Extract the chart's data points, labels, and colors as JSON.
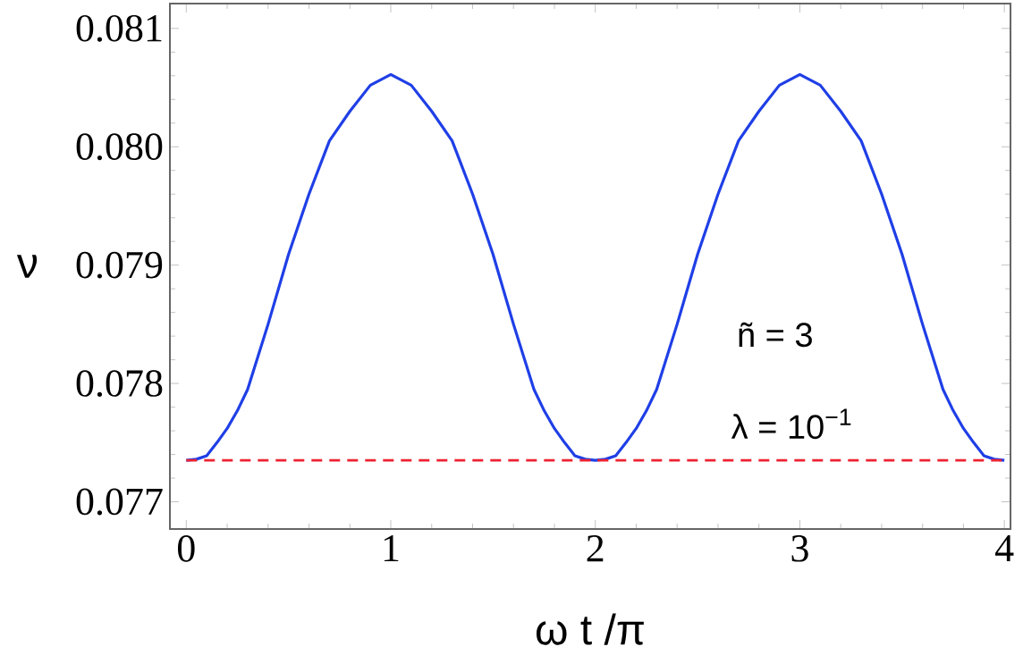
{
  "chart_data": {
    "type": "line",
    "xlabel": "ω t /π",
    "ylabel": "ν",
    "xlim": [
      -0.08,
      4.03
    ],
    "ylim": [
      0.07677,
      0.08121
    ],
    "xticks": [
      0,
      1,
      2,
      3,
      4
    ],
    "yticks": [
      0.077,
      0.078,
      0.079,
      {
        "value": 0.08,
        "label": "0.080"
      },
      0.081
    ],
    "marker": "none",
    "line_style": "solid",
    "series": [
      {
        "color": "#1f3fe6",
        "x": [
          0,
          0.05,
          0.1,
          0.15,
          0.2,
          0.25,
          0.3,
          0.4,
          0.5,
          0.6,
          0.7,
          0.8,
          0.9,
          1.0,
          1.1,
          1.2,
          1.3,
          1.4,
          1.5,
          1.6,
          1.7,
          1.75,
          1.8,
          1.85,
          1.9,
          1.95,
          2.0,
          2.05,
          2.1,
          2.15,
          2.2,
          2.25,
          2.3,
          2.4,
          2.5,
          2.6,
          2.7,
          2.8,
          2.9,
          3.0,
          3.1,
          3.2,
          3.3,
          3.4,
          3.5,
          3.6,
          3.7,
          3.75,
          3.8,
          3.85,
          3.9,
          3.95,
          4.0
        ],
        "values": [
          0.07735,
          0.07736,
          0.07739,
          0.0775,
          0.07762,
          0.07777,
          0.07795,
          0.0785,
          0.07909,
          0.0796,
          0.08005,
          0.0803,
          0.08052,
          0.08061,
          0.08052,
          0.0803,
          0.08005,
          0.0796,
          0.07909,
          0.0785,
          0.07795,
          0.07777,
          0.07762,
          0.0775,
          0.07739,
          0.07736,
          0.07735,
          0.07736,
          0.07739,
          0.0775,
          0.07762,
          0.07777,
          0.07795,
          0.0785,
          0.07909,
          0.0796,
          0.08005,
          0.0803,
          0.08052,
          0.08061,
          0.08052,
          0.0803,
          0.08005,
          0.0796,
          0.07909,
          0.0785,
          0.07795,
          0.07777,
          0.07762,
          0.0775,
          0.07739,
          0.07736,
          0.07735
        ]
      }
    ],
    "ref_lines": [
      {
        "axis": "y",
        "value": 0.07735,
        "color": "#ee2233",
        "line_style": "dashed"
      }
    ],
    "annotations": [
      "ñ = 3",
      "λ = 10$^{−1}$"
    ]
  }
}
